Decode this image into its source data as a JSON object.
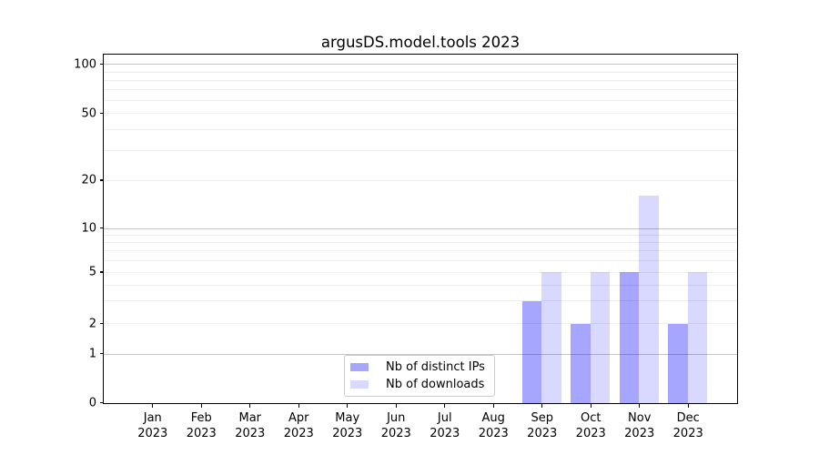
{
  "chart_data": {
    "type": "bar",
    "title": "argusDS.model.tools 2023",
    "categories": [
      "Jan 2023",
      "Feb 2023",
      "Mar 2023",
      "Apr 2023",
      "May 2023",
      "Jun 2023",
      "Jul 2023",
      "Aug 2023",
      "Sep 2023",
      "Oct 2023",
      "Nov 2023",
      "Dec 2023"
    ],
    "series": [
      {
        "name": "Nb of distinct IPs",
        "color": "rgba(0,0,255,0.35)",
        "legend_color": "#a6a6ff",
        "values": [
          0,
          0,
          0,
          0,
          0,
          0,
          0,
          0,
          3,
          2,
          5,
          2
        ]
      },
      {
        "name": "Nb of downloads",
        "color": "rgba(0,0,255,0.15)",
        "legend_color": "#d9d9ff",
        "values": [
          0,
          0,
          0,
          0,
          0,
          0,
          0,
          0,
          5,
          5,
          16,
          5
        ]
      }
    ],
    "xlabel": "",
    "ylabel": "",
    "yscale": "log-like with zero baseline",
    "ylim": [
      0,
      115
    ],
    "y_ticks": [
      0,
      1,
      2,
      5,
      10,
      20,
      50,
      100
    ],
    "y_major_gridlines": [
      1,
      10,
      100
    ],
    "y_minor_gridlines": [
      2,
      3,
      4,
      5,
      6,
      7,
      8,
      9,
      20,
      30,
      40,
      50,
      60,
      70,
      80,
      90
    ],
    "grid": "both, horizontal only",
    "legend_position": "lower center",
    "colors": {
      "axis_spine": "#000000",
      "major_grid": "#c6c6c6",
      "minor_grid": "#ededed",
      "legend_border": "#cccccc",
      "background": "#ffffff"
    }
  }
}
